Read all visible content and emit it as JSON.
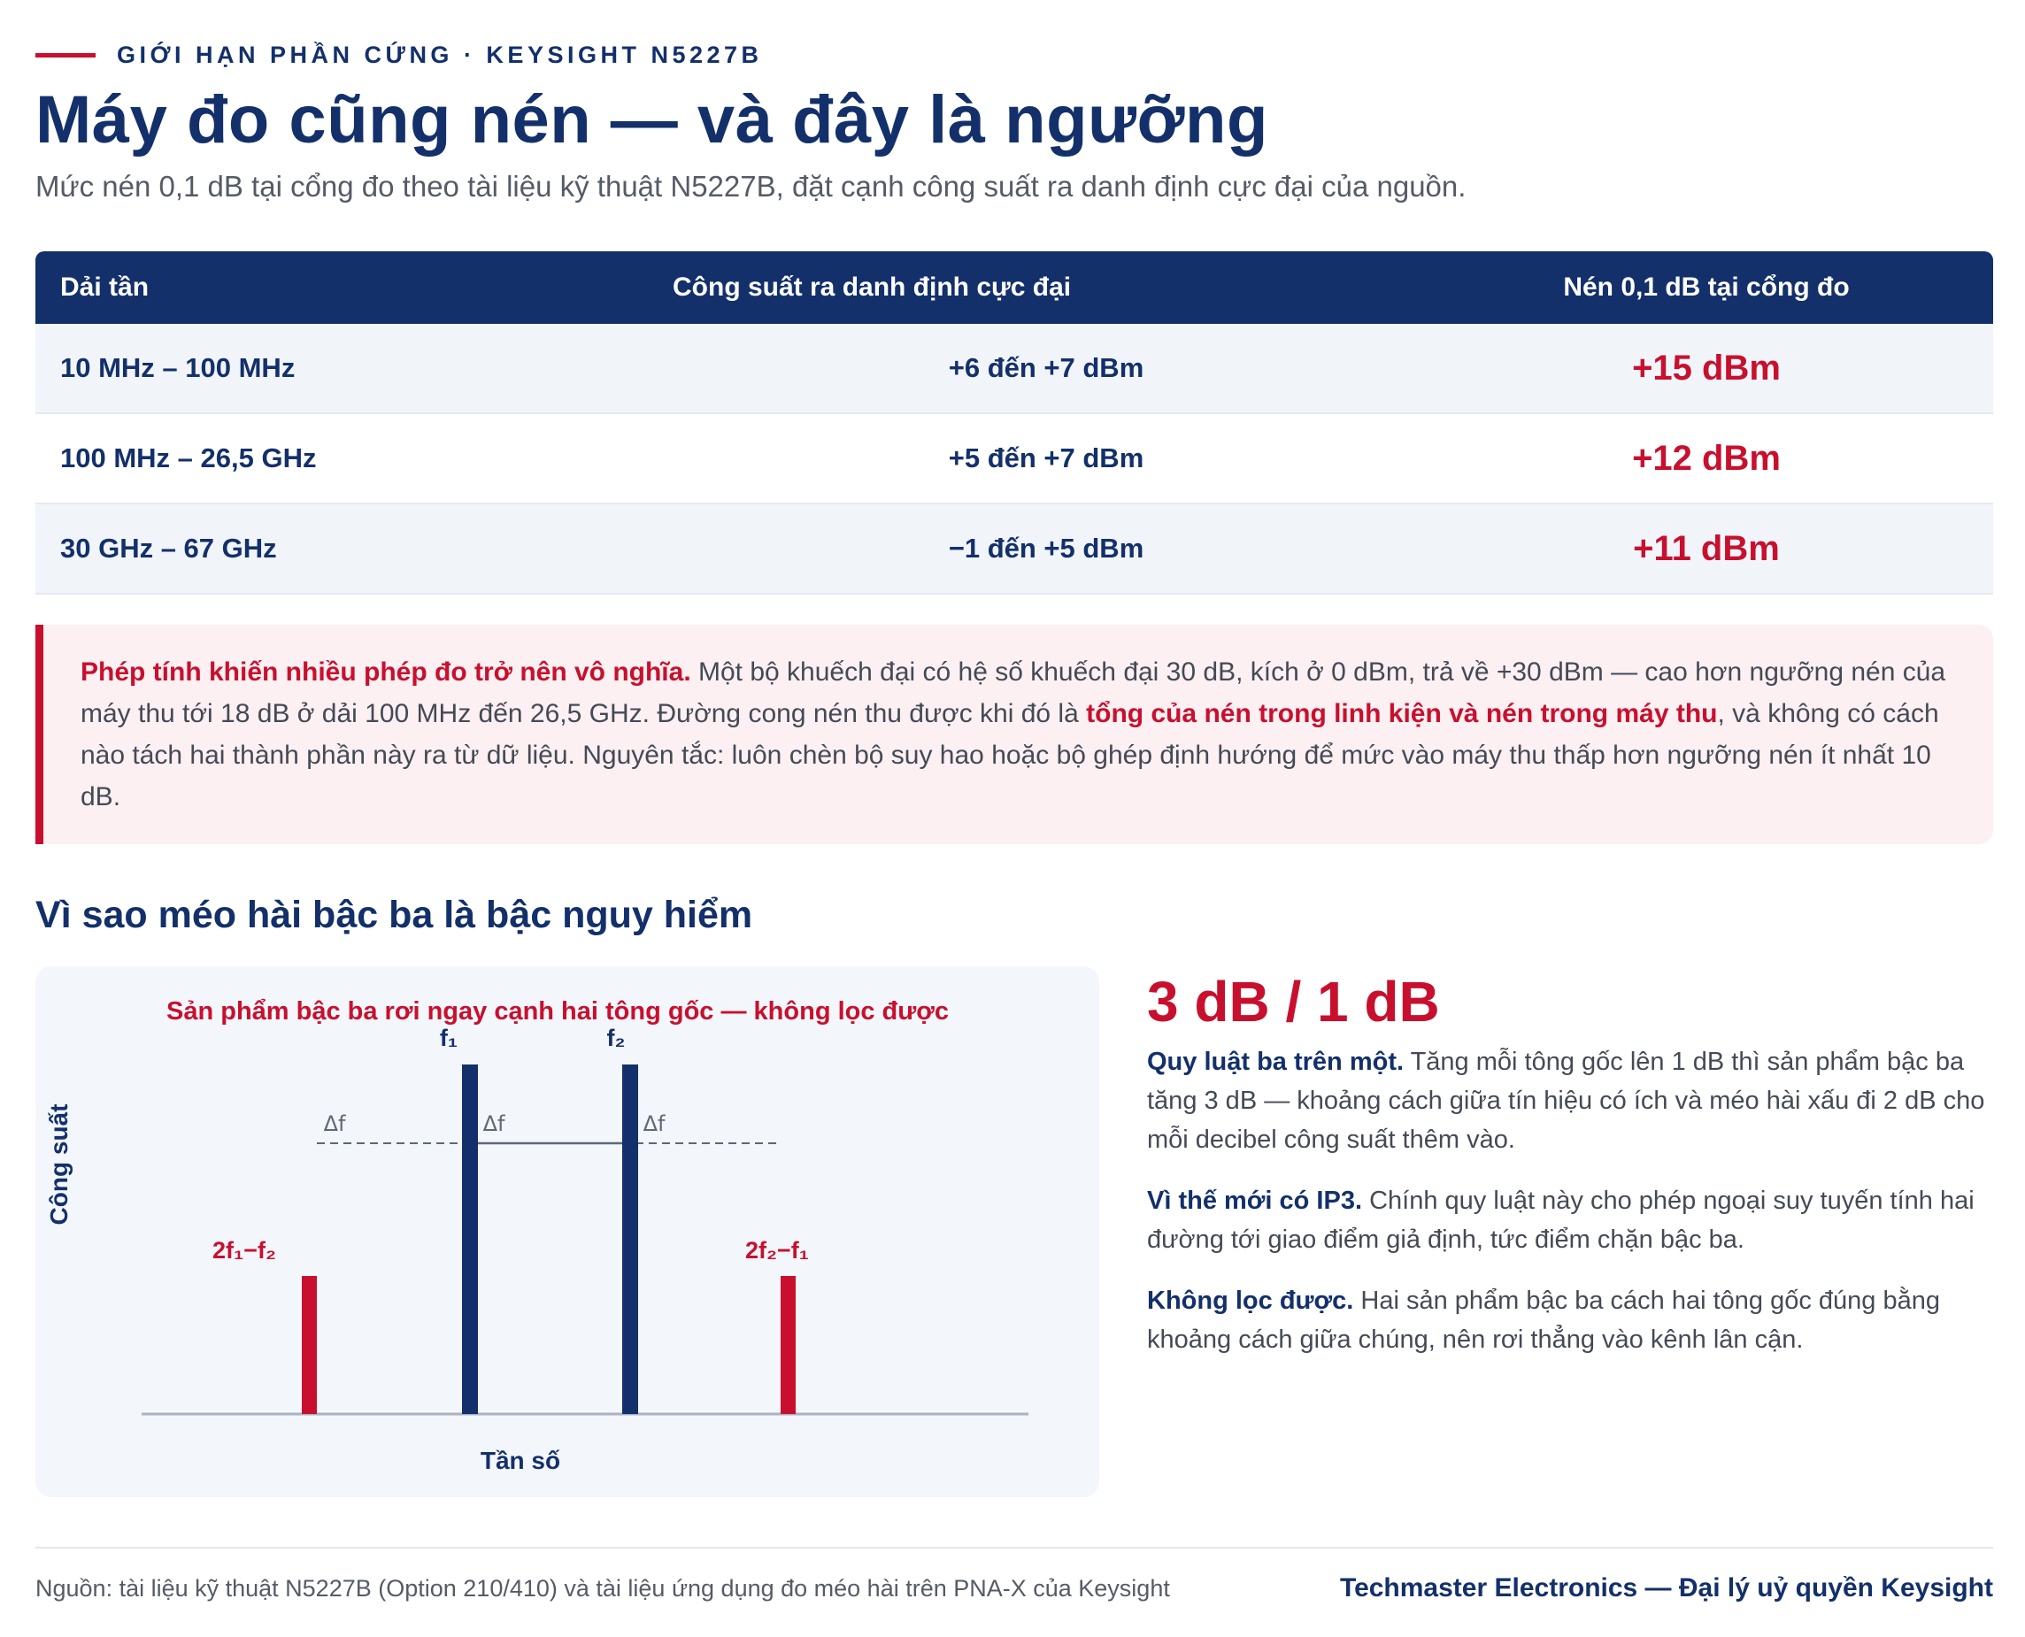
{
  "eyebrow": "GIỚI HẠN PHẦN CỨNG · KEYSIGHT N5227B",
  "title": "Máy đo cũng nén — và đây là ngưỡng",
  "subtitle": "Mức nén 0,1 dB tại cổng đo theo tài liệu kỹ thuật N5227B, đặt cạnh công suất ra danh định cực đại của nguồn.",
  "table": {
    "headers": [
      "Dải tần",
      "Công suất ra danh định cực đại",
      "Nén 0,1 dB tại cổng đo"
    ],
    "rows": [
      [
        "10 MHz – 100 MHz",
        "+6 đến +7 dBm",
        "+15 dBm"
      ],
      [
        "100 MHz – 26,5 GHz",
        "+5 đến +7 dBm",
        "+12 dBm"
      ],
      [
        "30 GHz – 67 GHz",
        "−1 đến +5 dBm",
        "+11 dBm"
      ]
    ]
  },
  "callout": {
    "lead": "Phép tính khiến nhiều phép đo trở nên vô nghĩa.",
    "text1": " Một bộ khuếch đại có hệ số khuếch đại 30 dB, kích ở 0 dBm, trả về +30 dBm — cao hơn ngưỡng nén của máy thu tới 18 dB ở dải 100 MHz đến 26,5 GHz. Đường cong nén thu được khi đó là ",
    "emph": "tổng của nén trong linh kiện và nén trong máy thu",
    "text2": ", và không có cách nào tách hai thành phần này ra từ dữ liệu. Nguyên tắc: luôn chèn bộ suy hao hoặc bộ ghép định hướng để mức vào máy thu thấp hơn ngưỡng nén ít nhất 10 dB."
  },
  "section_title": "Vì sao méo hài bậc ba là bậc nguy hiểm",
  "diagram": {
    "caption": "Sản phẩm bậc ba rơi ngay cạnh hai tông gốc — không lọc được",
    "y_label": "Công suất",
    "x_label": "Tần số",
    "tone1": "f₁",
    "tone2": "f₂",
    "im_left": "2f₁−f₂",
    "im_right": "2f₂−f₁",
    "delta": "Δf",
    "colors": {
      "tone": "#13306b",
      "im": "#c8102e"
    }
  },
  "right": {
    "big": "3 dB / 1 dB",
    "p1_lead": "Quy luật ba trên một.",
    "p1_text": " Tăng mỗi tông gốc lên 1 dB thì sản phẩm bậc ba tăng 3 dB — khoảng cách giữa tín hiệu có ích và méo hài xấu đi 2 dB cho mỗi decibel công suất thêm vào.",
    "p2_lead": "Vì thế mới có IP3.",
    "p2_text": " Chính quy luật này cho phép ngoại suy tuyến tính hai đường tới giao điểm giả định, tức điểm chặn bậc ba.",
    "p3_lead": "Không lọc được.",
    "p3_text": " Hai sản phẩm bậc ba cách hai tông gốc đúng bằng khoảng cách giữa chúng, nên rơi thẳng vào kênh lân cận."
  },
  "footer": {
    "source": "Nguồn: tài liệu kỹ thuật N5227B (Option 210/410) và tài liệu ứng dụng đo méo hài trên PNA-X của Keysight",
    "brand": "Techmaster Electronics — Đại lý uỷ quyền Keysight"
  }
}
